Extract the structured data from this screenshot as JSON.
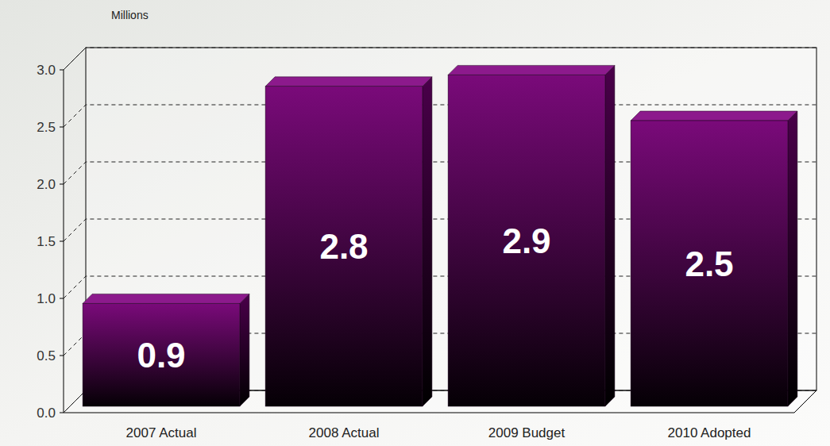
{
  "chart_data": {
    "type": "bar",
    "y_label": "Millions",
    "categories": [
      "2007 Actual",
      "2008 Actual",
      "2009 Budget",
      "2010 Adopted"
    ],
    "values": [
      0.9,
      2.8,
      2.9,
      2.5
    ],
    "color": "#7a0a7a",
    "ylim": [
      0,
      3
    ],
    "yticks": [
      {
        "value": 0,
        "label": "0.0"
      },
      0.5,
      {
        "value": 1,
        "label": "1.0"
      },
      1.5,
      {
        "value": 2,
        "label": "2.0"
      },
      2.5,
      {
        "value": 3,
        "label": "3.0"
      }
    ],
    "grid": true,
    "data_labels": true
  }
}
